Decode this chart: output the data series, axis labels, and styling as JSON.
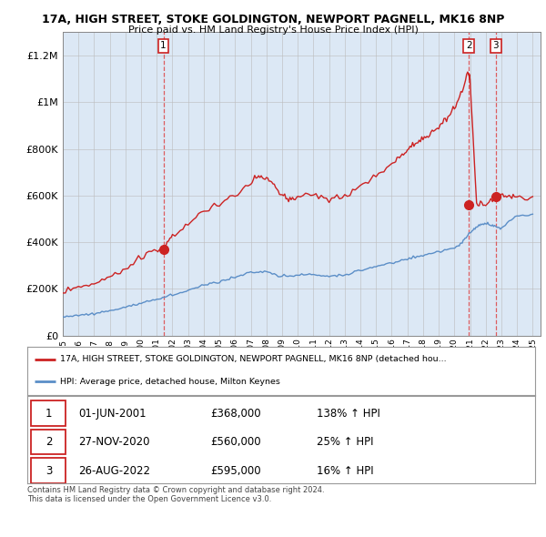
{
  "title_line1": "17A, HIGH STREET, STOKE GOLDINGTON, NEWPORT PAGNELL, MK16 8NP",
  "title_line2": "Price paid vs. HM Land Registry's House Price Index (HPI)",
  "xlim": [
    1995.0,
    2025.5
  ],
  "ylim": [
    0,
    1300000
  ],
  "yticks": [
    0,
    200000,
    400000,
    600000,
    800000,
    1000000,
    1200000
  ],
  "ytick_labels": [
    "£0",
    "£200K",
    "£400K",
    "£600K",
    "£800K",
    "£1M",
    "£1.2M"
  ],
  "xtick_years": [
    1995,
    1996,
    1997,
    1998,
    1999,
    2000,
    2001,
    2002,
    2003,
    2004,
    2005,
    2006,
    2007,
    2008,
    2009,
    2010,
    2011,
    2012,
    2013,
    2014,
    2015,
    2016,
    2017,
    2018,
    2019,
    2020,
    2021,
    2022,
    2023,
    2024,
    2025
  ],
  "hpi_color": "#5b8ec7",
  "price_color": "#cc2222",
  "chart_bg": "#dce8f5",
  "sale_dates": [
    2001.42,
    2020.92,
    2022.65
  ],
  "sale_prices": [
    368000,
    560000,
    595000
  ],
  "sale_labels": [
    "1",
    "2",
    "3"
  ],
  "legend_label_red": "17A, HIGH STREET, STOKE GOLDINGTON, NEWPORT PAGNELL, MK16 8NP (detached hou...",
  "legend_label_blue": "HPI: Average price, detached house, Milton Keynes",
  "table_rows": [
    {
      "num": "1",
      "date": "01-JUN-2001",
      "price": "£368,000",
      "pct": "138% ↑ HPI"
    },
    {
      "num": "2",
      "date": "27-NOV-2020",
      "price": "£560,000",
      "pct": "25% ↑ HPI"
    },
    {
      "num": "3",
      "date": "26-AUG-2022",
      "price": "£595,000",
      "pct": "16% ↑ HPI"
    }
  ],
  "footnote": "Contains HM Land Registry data © Crown copyright and database right 2024.\nThis data is licensed under the Open Government Licence v3.0.",
  "background_color": "#ffffff",
  "grid_color": "#bbbbbb",
  "vline_color": "#dd4444"
}
